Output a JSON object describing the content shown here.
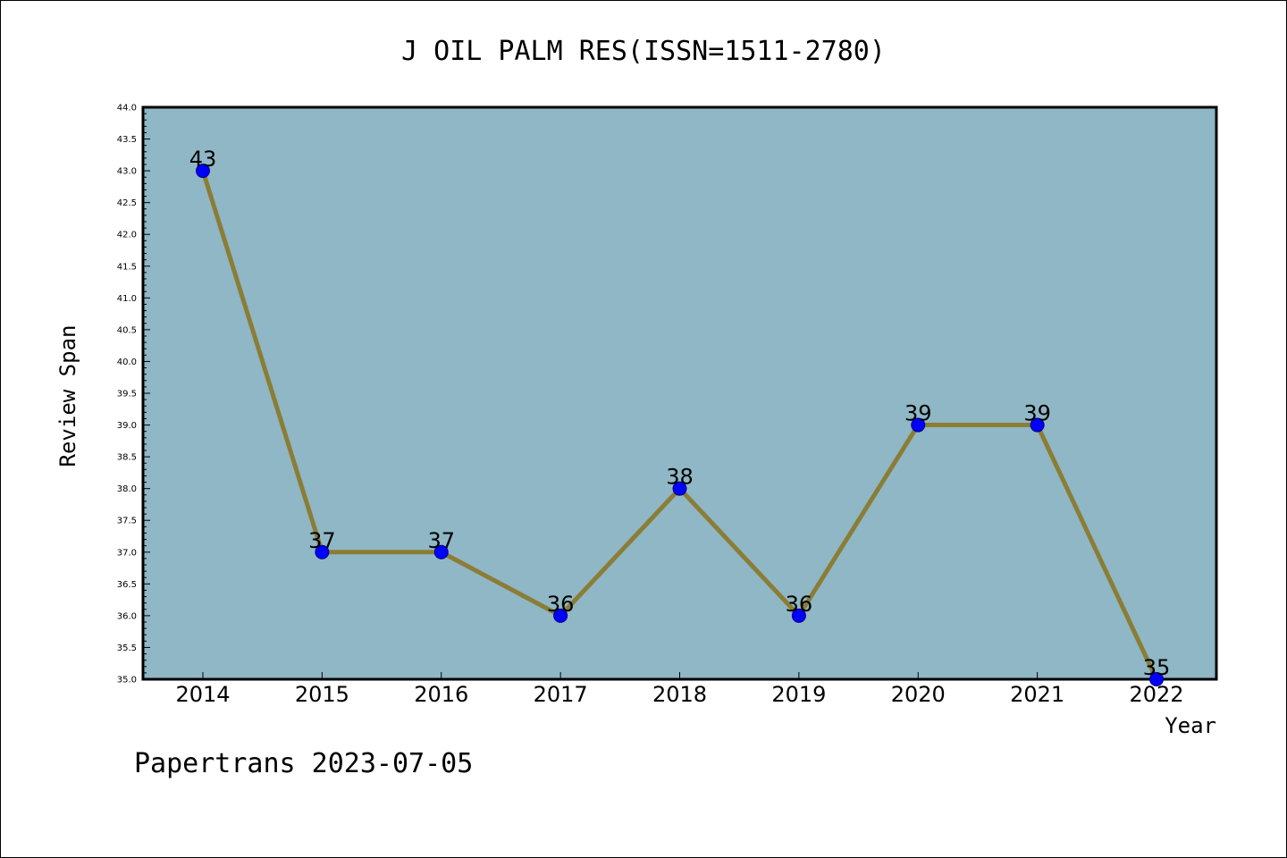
{
  "chart_data": {
    "type": "line",
    "title": "J OIL PALM RES(ISSN=1511-2780)",
    "xlabel": "Year",
    "ylabel": "Review Span",
    "categories": [
      "2014",
      "2015",
      "2016",
      "2017",
      "2018",
      "2019",
      "2020",
      "2021",
      "2022"
    ],
    "series": [
      {
        "values": [
          43,
          37,
          37,
          36,
          38,
          36,
          39,
          39,
          35
        ]
      }
    ],
    "data_labels": [
      "43",
      "37",
      "37",
      "36",
      "38",
      "36",
      "39",
      "39",
      "35"
    ],
    "ylim": [
      35.0,
      44.0
    ],
    "yticks": [
      "35.0",
      "35.5",
      "36.0",
      "36.5",
      "37.0",
      "37.5",
      "38.0",
      "38.5",
      "39.0",
      "39.5",
      "40.0",
      "40.5",
      "41.0",
      "41.5",
      "42.0",
      "42.5",
      "43.0",
      "43.5",
      "44.0"
    ],
    "grid": false,
    "legend": "none",
    "footer": "Papertrans 2023-07-05",
    "colors": {
      "plot_background": "#8fb7c5",
      "line": "#8b7d36",
      "marker_fill": "#0000ff",
      "marker_edge": "#000080"
    }
  }
}
